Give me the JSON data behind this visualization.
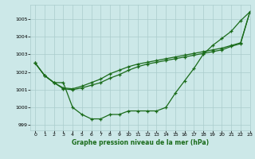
{
  "title": "Graphe pression niveau de la mer (hPa)",
  "bg_color": "#cce8e8",
  "line_color": "#1a6b1a",
  "grid_color": "#aacccc",
  "xlim": [
    -0.5,
    23
  ],
  "ylim": [
    998.7,
    1005.8
  ],
  "yticks": [
    999,
    1000,
    1001,
    1002,
    1003,
    1004,
    1005
  ],
  "xticks": [
    0,
    1,
    2,
    3,
    4,
    5,
    6,
    7,
    8,
    9,
    10,
    11,
    12,
    13,
    14,
    15,
    16,
    17,
    18,
    19,
    20,
    21,
    22,
    23
  ],
  "line1": [
    1002.5,
    1001.8,
    1001.4,
    1001.4,
    1000.0,
    999.6,
    999.35,
    999.35,
    999.6,
    999.6,
    999.8,
    999.8,
    999.8,
    999.8,
    1000.0,
    1000.8,
    1001.5,
    1002.2,
    1003.0,
    1003.5,
    1003.9,
    1004.3,
    1004.9,
    1005.4
  ],
  "line2": [
    1002.5,
    1001.8,
    1001.4,
    1001.1,
    1001.05,
    1001.2,
    1001.4,
    1001.6,
    1001.9,
    1002.1,
    1002.3,
    1002.45,
    1002.55,
    1002.65,
    1002.75,
    1002.85,
    1002.95,
    1003.05,
    1003.15,
    1003.25,
    1003.35,
    1003.5,
    1003.65,
    1005.4
  ],
  "line3": [
    1002.5,
    1001.8,
    1001.4,
    1001.05,
    1001.0,
    1001.1,
    1001.25,
    1001.4,
    1001.65,
    1001.85,
    1002.1,
    1002.3,
    1002.45,
    1002.55,
    1002.65,
    1002.75,
    1002.85,
    1002.95,
    1003.05,
    1003.15,
    1003.25,
    1003.45,
    1003.6,
    1005.4
  ]
}
